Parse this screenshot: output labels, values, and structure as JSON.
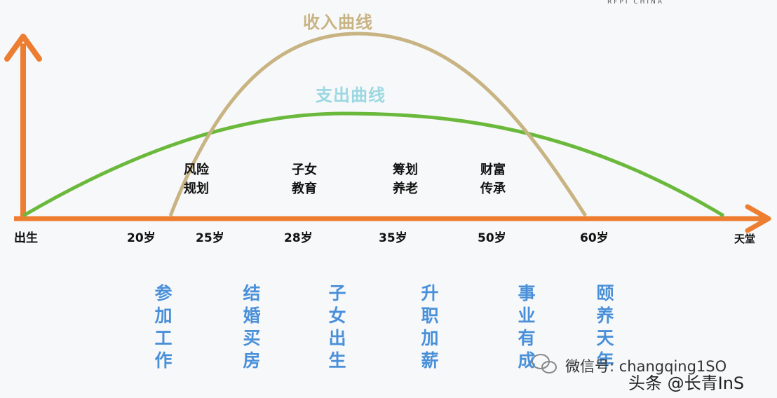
{
  "header": {
    "brand": "RFPI CHINA"
  },
  "curves": {
    "income_title": "收入曲线",
    "expense_title": "支出曲线",
    "income_color": "#c8b383",
    "expense_color": "#6bb93c",
    "axis_color": "#ed7d31"
  },
  "axis": {
    "birth": "出生",
    "ages": [
      "20岁",
      "25岁",
      "28岁",
      "35岁",
      "50岁",
      "60岁"
    ],
    "end": "天堂"
  },
  "plans": [
    "风险\n规划",
    "子女\n教育",
    "筹划\n养老",
    "财富\n传承"
  ],
  "events": [
    "参加工作",
    "结婚买房",
    "子女出生",
    "升职加薪",
    "事业有成",
    "颐养天年"
  ],
  "event_color": "#4a90d9",
  "watermark": {
    "wechat": "微信号: changqing1SO",
    "source": "头条 @长青InS"
  }
}
